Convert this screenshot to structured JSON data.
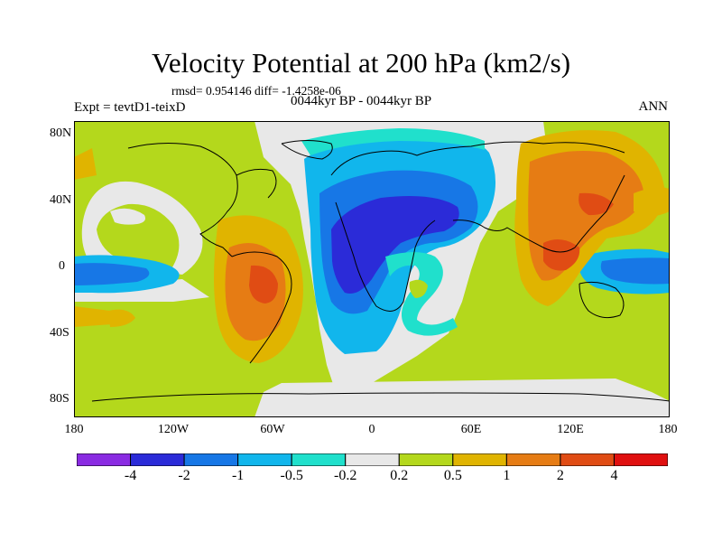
{
  "title": "Velocity Potential at 200 hPa (km2/s)",
  "stats": "rmsd= 0.954146 diff= -1.4258e-06",
  "experiment": "Expt = tevtD1-teixD",
  "period": "0044kyr BP - 0044kyr BP",
  "season": "ANN",
  "axes": {
    "lat_labels": [
      "80N",
      "40N",
      "0",
      "40S",
      "80S"
    ],
    "lon_labels": [
      "180",
      "120W",
      "60W",
      "0",
      "60E",
      "120E",
      "180"
    ]
  },
  "colorbar": {
    "colors": [
      "#8a2be2",
      "#2b2bd8",
      "#1777e6",
      "#11b6ec",
      "#20e0cc",
      "#e8e8e8",
      "#b4d81c",
      "#e0b400",
      "#e67c14",
      "#e04c14",
      "#e01010"
    ],
    "labels": [
      "-4",
      "-2",
      "-1",
      "-0.5",
      "-0.2",
      "0.2",
      "0.5",
      "1",
      "2",
      "4"
    ]
  }
}
